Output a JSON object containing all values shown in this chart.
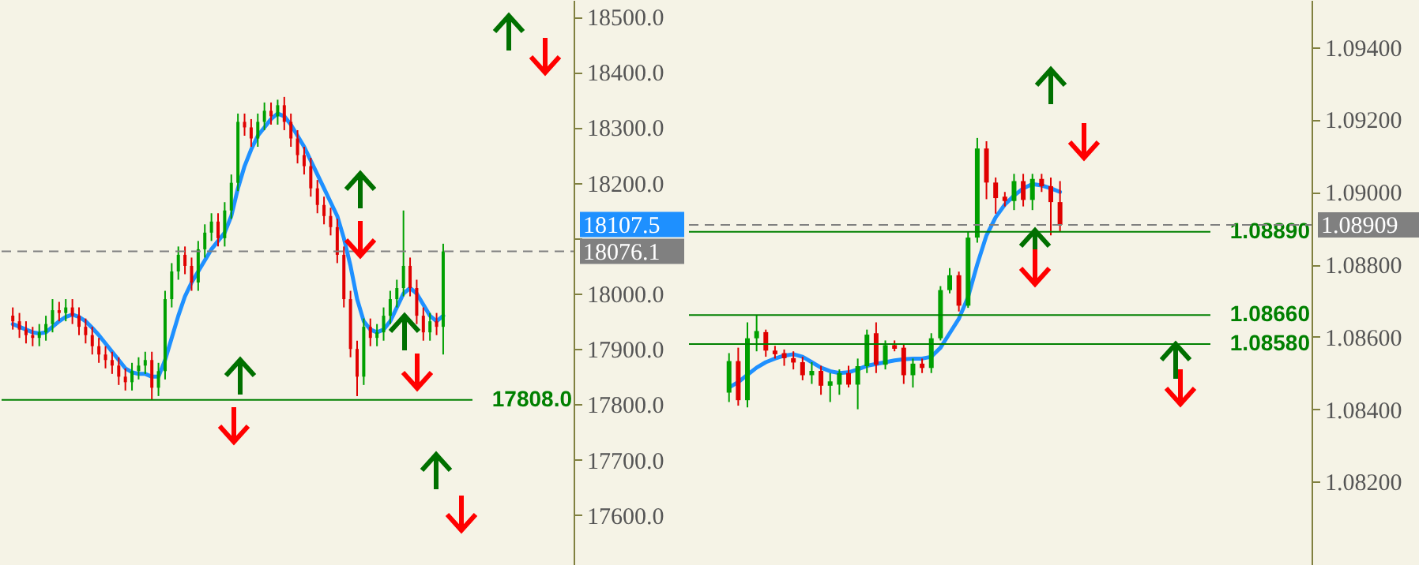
{
  "chart_data": [
    {
      "type": "candlestick",
      "categories": [
        null,
        null,
        null,
        null,
        null,
        null,
        null,
        null,
        null,
        null,
        null,
        null,
        null,
        null,
        null,
        null,
        null,
        null,
        null,
        null,
        null,
        null,
        null,
        null,
        null,
        null,
        null,
        null,
        null,
        null,
        null,
        null,
        null,
        null,
        null,
        null,
        null,
        null,
        null,
        null,
        null,
        null,
        null,
        null,
        null,
        null,
        null,
        null,
        null,
        null,
        null,
        null,
        null,
        null,
        null,
        null,
        null,
        null,
        null,
        null,
        null,
        null,
        null,
        null,
        null,
        null,
        null,
        null,
        null,
        null,
        null,
        null,
        null,
        null,
        null,
        null,
        null,
        null,
        null,
        null,
        null,
        null,
        null,
        null
      ],
      "ohlc": [
        [
          17960,
          17975,
          17935,
          17950
        ],
        [
          17950,
          17965,
          17920,
          17935
        ],
        [
          17935,
          17950,
          17910,
          17925
        ],
        [
          17925,
          17940,
          17905,
          17920
        ],
        [
          17920,
          17945,
          17905,
          17930
        ],
        [
          17930,
          17960,
          17915,
          17945
        ],
        [
          17945,
          17990,
          17930,
          17970
        ],
        [
          17970,
          17985,
          17950,
          17965
        ],
        [
          17965,
          17990,
          17950,
          17975
        ],
        [
          17975,
          17990,
          17945,
          17960
        ],
        [
          17960,
          17975,
          17925,
          17940
        ],
        [
          17940,
          17955,
          17910,
          17925
        ],
        [
          17925,
          17940,
          17890,
          17905
        ],
        [
          17905,
          17920,
          17875,
          17890
        ],
        [
          17890,
          17905,
          17865,
          17880
        ],
        [
          17880,
          17895,
          17855,
          17870
        ],
        [
          17870,
          17885,
          17835,
          17850
        ],
        [
          17850,
          17865,
          17825,
          17840
        ],
        [
          17840,
          17875,
          17825,
          17860
        ],
        [
          17860,
          17885,
          17845,
          17870
        ],
        [
          17870,
          17895,
          17855,
          17880
        ],
        [
          17880,
          17895,
          17808,
          17830
        ],
        [
          17830,
          17875,
          17815,
          17860
        ],
        [
          17860,
          18005,
          17845,
          17990
        ],
        [
          17990,
          18055,
          17975,
          18040
        ],
        [
          18040,
          18085,
          18025,
          18070
        ],
        [
          18070,
          18085,
          18035,
          18050
        ],
        [
          18050,
          18065,
          18005,
          18020
        ],
        [
          18020,
          18095,
          18005,
          18080
        ],
        [
          18080,
          18125,
          18065,
          18110
        ],
        [
          18110,
          18145,
          18095,
          18130
        ],
        [
          18130,
          18145,
          18085,
          18100
        ],
        [
          18100,
          18165,
          18085,
          18150
        ],
        [
          18150,
          18215,
          18135,
          18200
        ],
        [
          18200,
          18325,
          18185,
          18310
        ],
        [
          18310,
          18325,
          18285,
          18300
        ],
        [
          18300,
          18315,
          18265,
          18280
        ],
        [
          18280,
          18325,
          18265,
          18310
        ],
        [
          18310,
          18345,
          18295,
          18330
        ],
        [
          18330,
          18345,
          18305,
          18320
        ],
        [
          18320,
          18350,
          18305,
          18340
        ],
        [
          18340,
          18355,
          18295,
          18310
        ],
        [
          18310,
          18325,
          18265,
          18280
        ],
        [
          18280,
          18295,
          18235,
          18250
        ],
        [
          18250,
          18265,
          18215,
          18230
        ],
        [
          18230,
          18245,
          18175,
          18190
        ],
        [
          18190,
          18205,
          18145,
          18160
        ],
        [
          18160,
          18175,
          18125,
          18140
        ],
        [
          18140,
          18155,
          18105,
          18120
        ],
        [
          18120,
          18135,
          18055,
          18070
        ],
        [
          18070,
          18085,
          17975,
          17990
        ],
        [
          17990,
          18005,
          17885,
          17900
        ],
        [
          17900,
          17915,
          17815,
          17850
        ],
        [
          17850,
          17955,
          17835,
          17940
        ],
        [
          17940,
          17955,
          17905,
          17920
        ],
        [
          17920,
          17945,
          17905,
          17930
        ],
        [
          17930,
          17975,
          17915,
          17960
        ],
        [
          17960,
          18005,
          17945,
          17990
        ],
        [
          17990,
          18025,
          17975,
          18010
        ],
        [
          18010,
          18150,
          17995,
          18050
        ],
        [
          18050,
          18065,
          17995,
          18010
        ],
        [
          18010,
          18025,
          17945,
          17960
        ],
        [
          17960,
          17975,
          17915,
          17930
        ],
        [
          17930,
          17965,
          17915,
          17950
        ],
        [
          17950,
          17965,
          17925,
          17940
        ],
        [
          17940,
          18090,
          17890,
          18076.1
        ],
        null,
        null,
        null,
        null,
        null,
        null,
        null,
        null,
        null,
        null,
        null,
        null,
        null,
        null,
        null,
        null,
        null,
        null
      ],
      "colors": [
        "#e00000",
        "#e00000",
        "#e00000",
        "#e00000",
        "#00a000",
        "#00a000",
        "#00a000",
        "#e00000",
        "#00a000",
        "#e00000",
        "#e00000",
        "#e00000",
        "#e00000",
        "#e00000",
        "#e00000",
        "#e00000",
        "#e00000",
        "#e00000",
        "#00a000",
        "#00a000",
        "#00a000",
        "#e00000",
        "#00a000",
        "#00a000",
        "#00a000",
        "#00a000",
        "#e00000",
        "#e00000",
        "#00a000",
        "#00a000",
        "#00a000",
        "#e00000",
        "#00a000",
        "#00a000",
        "#00a000",
        "#e00000",
        "#e00000",
        "#00a000",
        "#00a000",
        "#e00000",
        "#00a000",
        "#e00000",
        "#e00000",
        "#e00000",
        "#e00000",
        "#e00000",
        "#e00000",
        "#e00000",
        "#e00000",
        "#e00000",
        "#e00000",
        "#e00000",
        "#e00000",
        "#00a000",
        "#e00000",
        "#00a000",
        "#00a000",
        "#00a000",
        "#00a000",
        "#00a000",
        "#e00000",
        "#e00000",
        "#e00000",
        "#00a000",
        "#e00000",
        "#00a000",
        null,
        null,
        null,
        null,
        null,
        null,
        null,
        null,
        null,
        null,
        null,
        null,
        null,
        null,
        null,
        null,
        null,
        null
      ],
      "series": [
        {
          "type": "line",
          "color": "#1e90ff",
          "values": [
            17945,
            17940,
            17935,
            17930,
            17928,
            17930,
            17940,
            17950,
            17958,
            17962,
            17958,
            17950,
            17938,
            17925,
            17910,
            17895,
            17880,
            17865,
            17858,
            17855,
            17855,
            17850,
            17850,
            17880,
            17920,
            17960,
            17995,
            18020,
            18040,
            18060,
            18080,
            18095,
            18110,
            18140,
            18190,
            18230,
            18260,
            18285,
            18300,
            18315,
            18325,
            18320,
            18305,
            18285,
            18265,
            18240,
            18215,
            18190,
            18165,
            18140,
            18100,
            18050,
            17990,
            17950,
            17935,
            17930,
            17935,
            17950,
            17975,
            18000,
            18010,
            18000,
            17980,
            17960,
            17950,
            17960,
            null,
            null,
            null,
            null,
            null,
            null,
            null,
            null,
            null,
            null,
            null,
            null,
            null,
            null,
            null,
            null,
            null,
            null
          ]
        }
      ],
      "ylim": [
        17510,
        18530
      ],
      "yticks": [
        {
          "value": 17600,
          "label": "17600.0"
        },
        {
          "value": 17700,
          "label": "17700.0"
        },
        {
          "value": 17800,
          "label": "17800.0"
        },
        {
          "value": 17900,
          "label": "17900.0"
        },
        {
          "value": 18000,
          "label": "18000.0"
        },
        {
          "value": 18100,
          "label": null
        },
        {
          "value": 18200,
          "label": "18200.0"
        },
        {
          "value": 18300,
          "label": "18300.0"
        },
        {
          "value": 18400,
          "label": "18400.0"
        },
        {
          "value": 18500,
          "label": "18500.0"
        }
      ],
      "ref_lines": [
        {
          "axis": "y",
          "value": 17808.0,
          "label": "17808.0",
          "color": "#008000"
        },
        {
          "axis": "y",
          "value": 18076.1,
          "label": "18076.1",
          "color": "#808080",
          "line_style": "dashed"
        }
      ],
      "annotations": [
        "18107.5"
      ],
      "tick_labels": "y"
    },
    {
      "type": "candlestick",
      "categories": [
        null,
        null,
        null,
        null,
        null,
        null,
        null,
        null,
        null,
        null,
        null,
        null,
        null,
        null,
        null,
        null,
        null,
        null,
        null,
        null,
        null,
        null,
        null,
        null,
        null,
        null,
        null,
        null,
        null,
        null,
        null,
        null,
        null,
        null,
        null,
        null,
        null,
        null,
        null,
        null,
        null,
        null,
        null,
        null,
        null,
        null,
        null,
        null,
        null,
        null,
        null,
        null,
        null,
        null,
        null,
        null,
        null,
        null,
        null,
        null,
        null,
        null,
        null,
        null,
        null,
        null
      ],
      "ohlc": [
        null,
        null,
        null,
        [
          1.08446,
          1.08555,
          1.0842,
          1.08533
        ],
        [
          1.08533,
          1.0857,
          1.0841,
          1.08425
        ],
        [
          1.08425,
          1.0864,
          1.08405,
          1.08596
        ],
        [
          1.08596,
          1.0866,
          1.0856,
          1.08616
        ],
        [
          1.08613,
          1.0862,
          1.08545,
          1.08562
        ],
        [
          1.08562,
          1.08575,
          1.0854,
          1.08552
        ],
        [
          1.08555,
          1.08565,
          1.0852,
          1.08541
        ],
        [
          1.08541,
          1.0856,
          1.0851,
          1.08529
        ],
        [
          1.0853,
          1.08545,
          1.0848,
          1.08494
        ],
        [
          1.08494,
          1.0853,
          1.0847,
          1.08506
        ],
        [
          1.08506,
          1.0852,
          1.0844,
          1.08465
        ],
        [
          1.08465,
          1.085,
          1.0842,
          1.08477
        ],
        [
          1.08468,
          1.0851,
          1.0844,
          1.085
        ],
        [
          1.085,
          1.0852,
          1.0846,
          1.08468
        ],
        [
          1.08468,
          1.0854,
          1.084,
          1.08519
        ],
        [
          1.08519,
          1.0862,
          1.085,
          1.08606
        ],
        [
          1.0861,
          1.0864,
          1.085,
          1.08523
        ],
        [
          1.08523,
          1.0859,
          1.0851,
          1.08577
        ],
        [
          1.08577,
          1.0859,
          1.0856,
          1.08567
        ],
        [
          1.0857,
          1.0858,
          1.0847,
          1.08494
        ],
        [
          1.08494,
          1.0854,
          1.0846,
          1.08526
        ],
        [
          1.08526,
          1.0854,
          1.085,
          1.08514
        ],
        [
          1.08514,
          1.0861,
          1.085,
          1.08596
        ],
        [
          1.08596,
          1.0874,
          1.0859,
          1.08729
        ],
        [
          1.08729,
          1.0879,
          1.0872,
          1.0877
        ],
        [
          1.0877,
          1.0878,
          1.0867,
          1.08686
        ],
        [
          1.08686,
          1.0889,
          1.0868,
          1.08874
        ],
        [
          1.08874,
          1.09149,
          1.0886,
          1.0912
        ],
        [
          1.0912,
          1.0914,
          1.0898,
          1.09026
        ],
        [
          1.09026,
          1.0904,
          1.0894,
          1.08983
        ],
        [
          1.08987,
          1.09,
          1.0896,
          1.08975
        ],
        [
          1.08975,
          1.0905,
          1.0895,
          1.0903
        ],
        [
          1.0903,
          1.0905,
          1.0896,
          1.08978
        ],
        [
          1.08978,
          1.0905,
          1.0895,
          1.09036
        ],
        [
          1.09036,
          1.0905,
          1.09,
          1.09016
        ],
        [
          1.09016,
          1.0904,
          1.0888,
          1.08972
        ],
        [
          1.08972,
          1.0903,
          1.0889,
          1.08909
        ],
        null,
        null,
        null,
        null,
        null,
        null,
        null,
        null,
        null,
        null,
        null,
        null,
        null,
        null,
        null,
        null,
        null,
        null,
        null,
        null,
        null,
        null,
        null,
        null,
        null,
        null
      ],
      "colors": [
        null,
        null,
        null,
        "#00a000",
        "#e00000",
        "#00a000",
        "#00a000",
        "#e00000",
        "#e00000",
        "#e00000",
        "#e00000",
        "#e00000",
        "#00a000",
        "#e00000",
        "#00a000",
        "#00a000",
        "#e00000",
        "#00a000",
        "#00a000",
        "#e00000",
        "#00a000",
        "#e00000",
        "#e00000",
        "#00a000",
        "#e00000",
        "#00a000",
        "#00a000",
        "#00a000",
        "#e00000",
        "#00a000",
        "#00a000",
        "#e00000",
        "#e00000",
        "#e00000",
        "#00a000",
        "#e00000",
        "#00a000",
        "#e00000",
        "#e00000",
        "#e00000",
        null,
        null,
        null,
        null,
        null,
        null,
        null,
        null,
        null,
        null,
        null,
        null,
        null,
        null,
        null,
        null,
        null,
        null,
        null,
        null,
        null,
        null,
        null,
        null,
        null,
        null
      ],
      "series": [
        {
          "type": "line",
          "color": "#1e90ff",
          "values": [
            null,
            null,
            null,
            1.0846,
            1.08475,
            1.08495,
            1.08515,
            1.0853,
            1.0854,
            1.08548,
            1.08552,
            1.08545,
            1.0853,
            1.08515,
            1.08505,
            1.085,
            1.08502,
            1.0851,
            1.0852,
            1.08525,
            1.0853,
            1.08535,
            1.08538,
            1.0854,
            1.0854,
            1.08545,
            1.0857,
            1.0861,
            1.0865,
            1.0871,
            1.088,
            1.0888,
            1.0893,
            1.08965,
            1.0899,
            1.0901,
            1.09022,
            1.09018,
            1.0901,
            1.09,
            null,
            null,
            null,
            null,
            null,
            null,
            null,
            null,
            null,
            null,
            null,
            null,
            null,
            null,
            null,
            null,
            null,
            null,
            null,
            null,
            null,
            null,
            null,
            null,
            null,
            null
          ]
        }
      ],
      "ylim": [
        1.0797,
        1.0953
      ],
      "yticks": [
        {
          "value": 1.082,
          "label": "1.08200"
        },
        {
          "value": 1.084,
          "label": "1.08400"
        },
        {
          "value": 1.086,
          "label": "1.08600"
        },
        {
          "value": 1.088,
          "label": "1.08800"
        },
        {
          "value": 1.09,
          "label": "1.09000"
        },
        {
          "value": 1.092,
          "label": "1.09200"
        },
        {
          "value": 1.094,
          "label": "1.09400"
        }
      ],
      "ref_lines": [
        {
          "axis": "y",
          "value": 1.0889,
          "label": "1.08890",
          "color": "#008000"
        },
        {
          "axis": "y",
          "value": 1.0866,
          "label": "1.08660",
          "color": "#008000"
        },
        {
          "axis": "y",
          "value": 1.0858,
          "label": "1.08580",
          "color": "#008000"
        },
        {
          "axis": "y",
          "value": 1.08909,
          "label": "1.08909",
          "color": "#808080",
          "line_style": "dashed"
        }
      ],
      "tick_labels": "y"
    }
  ]
}
